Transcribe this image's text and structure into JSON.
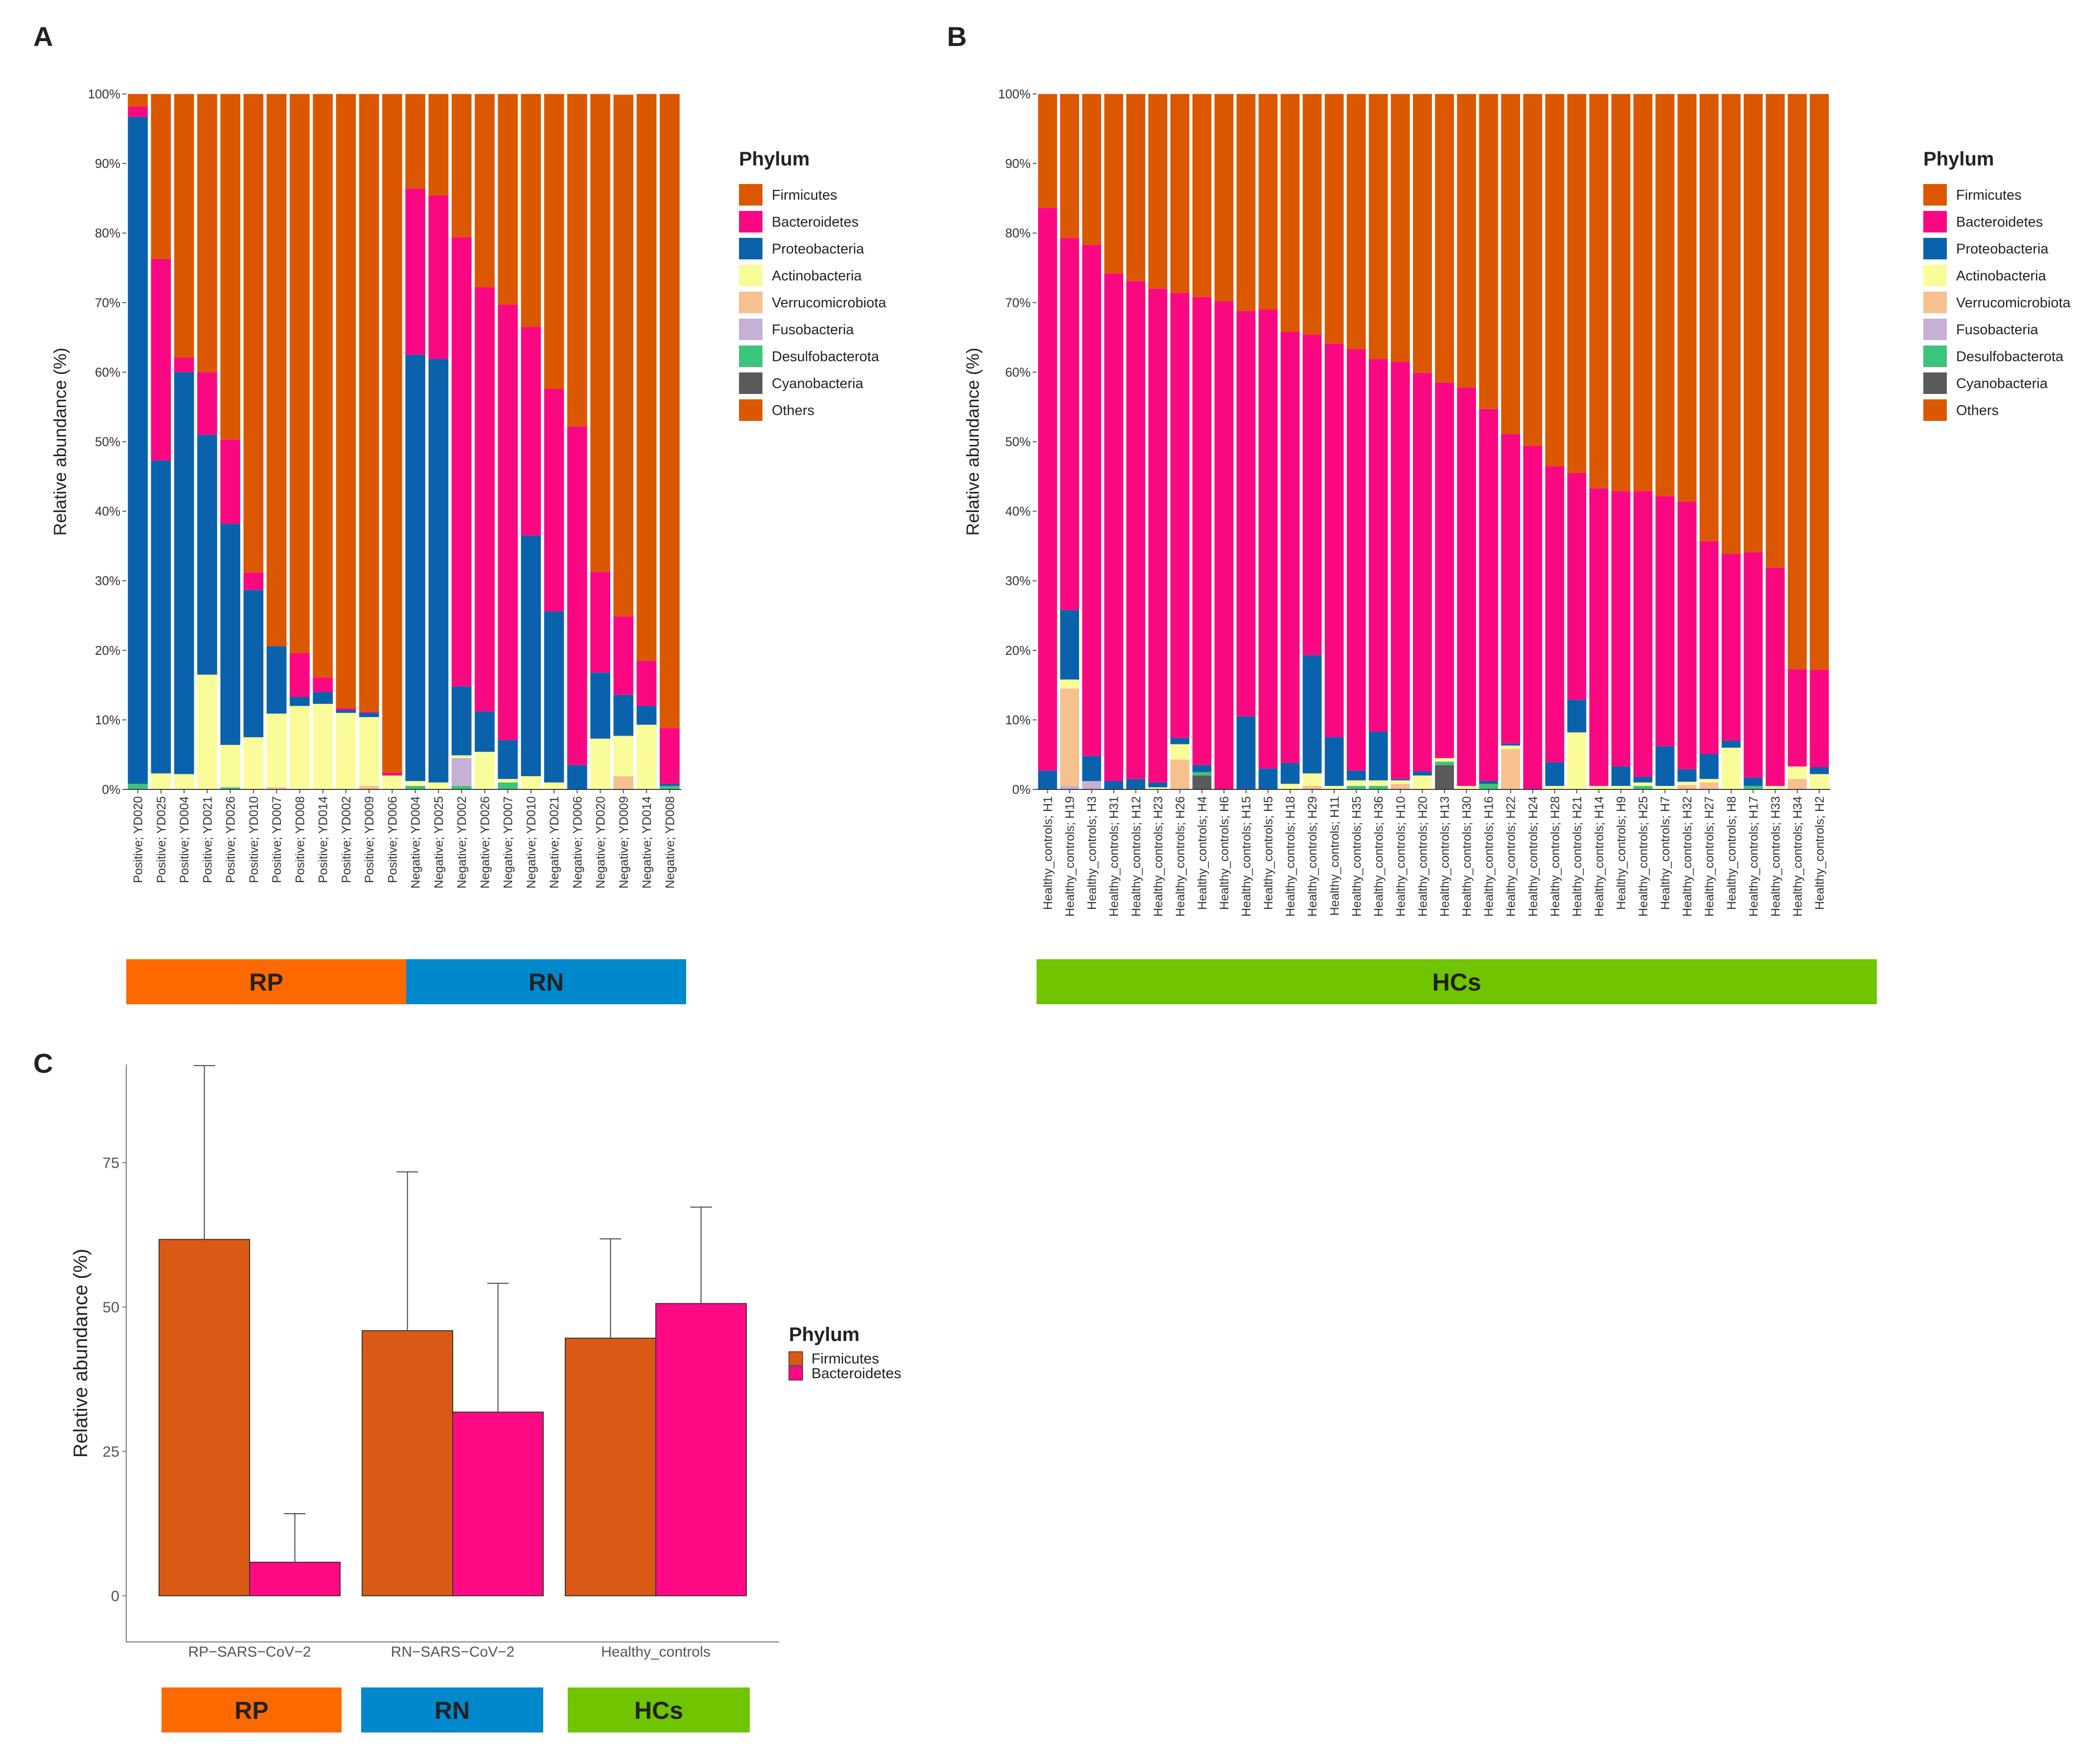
{
  "chart_data": [
    {
      "panel": "A",
      "type": "bar",
      "stacked": true,
      "ylabel": "Relative abundance (%)",
      "ylim": [
        0,
        100
      ],
      "yticks": [
        "0%",
        "10%",
        "20%",
        "30%",
        "40%",
        "50%",
        "60%",
        "70%",
        "80%",
        "90%",
        "100%"
      ],
      "legend_title": "Phylum",
      "legend_position": "right",
      "categories": [
        "Positive; YD020",
        "Positive; YD025",
        "Positive; YD004",
        "Positive; YD021",
        "Positive; YD026",
        "Positive; YD010",
        "Positive; YD007",
        "Positive; YD008",
        "Positive; YD014",
        "Positive; YD002",
        "Positive; YD009",
        "Positive; YD006",
        "Negative; YD004",
        "Negative; YD025",
        "Negative; YD002",
        "Negative; YD026",
        "Negative; YD007",
        "Negative; YD010",
        "Negative; YD021",
        "Negative; YD006",
        "Negative; YD020",
        "Negative; YD009",
        "Negative; YD014",
        "Negative; YD008"
      ],
      "series": [
        {
          "name": "Cyanobacteria",
          "color": "#5a5a5a",
          "values": [
            0,
            0,
            0,
            0,
            0,
            0,
            0,
            0,
            0,
            0,
            0,
            0,
            0,
            0,
            0,
            0,
            0,
            0,
            0,
            0,
            0,
            0,
            0,
            0
          ]
        },
        {
          "name": "Desulfobacterota",
          "color": "#3cc47c",
          "values": [
            0.8,
            0,
            0,
            0,
            0.3,
            0,
            0,
            0,
            0,
            0,
            0,
            0,
            0.5,
            0,
            0.5,
            0,
            1,
            0,
            0,
            0,
            0,
            0,
            0,
            0.5
          ]
        },
        {
          "name": "Fusobacteria",
          "color": "#c6b0d6",
          "values": [
            0,
            0,
            0,
            0,
            0,
            0,
            0,
            0,
            0,
            0,
            0,
            0,
            0,
            0,
            4,
            0,
            0,
            0,
            0,
            0,
            0,
            0,
            0,
            0
          ]
        },
        {
          "name": "Verrucomicrobiota",
          "color": "#f6c08f",
          "values": [
            0,
            0,
            0,
            0,
            0,
            0,
            0.3,
            0,
            0,
            0,
            0.5,
            0,
            0,
            0,
            0,
            0,
            0,
            0,
            0,
            0,
            0,
            1.9,
            0,
            0
          ]
        },
        {
          "name": "Actinobacteria",
          "color": "#fafc9a",
          "values": [
            0,
            2.3,
            2.2,
            16.5,
            6.1,
            7.5,
            10.6,
            12,
            12.3,
            11,
            9.9,
            2,
            0.7,
            1,
            0.4,
            5.4,
            0.5,
            1.9,
            1,
            0,
            7.3,
            5.8,
            9.3,
            0
          ]
        },
        {
          "name": "Proteobacteria",
          "color": "#0a62ad",
          "values": [
            95.9,
            45,
            57.8,
            34.5,
            31.8,
            21.2,
            9.7,
            1.3,
            1.7,
            0.4,
            0.6,
            0,
            61.3,
            60.9,
            9.9,
            5.8,
            5.6,
            34.6,
            24.6,
            3.5,
            9.5,
            5.9,
            2.7,
            0.3
          ]
        },
        {
          "name": "Bacteroidetes",
          "color": "#fa0882",
          "values": [
            1.5,
            29,
            2.1,
            9,
            12.1,
            2.5,
            0,
            6.3,
            2.1,
            0.3,
            0.2,
            0.4,
            23.9,
            23.5,
            64.6,
            61,
            62.6,
            30,
            32,
            48.7,
            14.5,
            11.3,
            6.5,
            8
          ]
        },
        {
          "name": "Firmicutes",
          "color": "#dc5800",
          "values": [
            1.8,
            23.7,
            37.9,
            40,
            49.7,
            68.8,
            79.4,
            80.4,
            83.9,
            88.3,
            88.8,
            97.6,
            13.6,
            14.6,
            20.6,
            27.8,
            30.3,
            33.5,
            42.4,
            47.8,
            68.7,
            75,
            81.5,
            91.2
          ]
        }
      ],
      "legend_entries": [
        "Firmicutes",
        "Bacteroidetes",
        "Proteobacteria",
        "Actinobacteria",
        "Verrucomicrobiota",
        "Fusobacteria",
        "Desulfobacterota",
        "Cyanobacteria",
        "Others"
      ],
      "legend_colors": [
        "#dc5800",
        "#fa0882",
        "#0a62ad",
        "#fafc9a",
        "#f6c08f",
        "#c6b0d6",
        "#3cc47c",
        "#5a5a5a",
        "#dc5800"
      ],
      "groups": [
        {
          "label": "RP",
          "color": "#ff6a00",
          "count": 12
        },
        {
          "label": "RN",
          "color": "#0088cc",
          "count": 12
        }
      ]
    },
    {
      "panel": "B",
      "type": "bar",
      "stacked": true,
      "ylabel": "Relative abundance (%)",
      "ylim": [
        0,
        100
      ],
      "yticks": [
        "0%",
        "10%",
        "20%",
        "30%",
        "40%",
        "50%",
        "60%",
        "70%",
        "80%",
        "90%",
        "100%"
      ],
      "legend_title": "Phylum",
      "legend_position": "right",
      "categories": [
        "Healthy_controls; H1",
        "Healthy_controls; H19",
        "Healthy_controls; H3",
        "Healthy_controls; H31",
        "Healthy_controls; H12",
        "Healthy_controls; H23",
        "Healthy_controls; H26",
        "Healthy_controls; H4",
        "Healthy_controls; H6",
        "Healthy_controls; H15",
        "Healthy_controls; H5",
        "Healthy_controls; H18",
        "Healthy_controls; H29",
        "Healthy_controls; H11",
        "Healthy_controls; H35",
        "Healthy_controls; H36",
        "Healthy_controls; H10",
        "Healthy_controls; H20",
        "Healthy_controls; H13",
        "Healthy_controls; H30",
        "Healthy_controls; H16",
        "Healthy_controls; H22",
        "Healthy_controls; H24",
        "Healthy_controls; H28",
        "Healthy_controls; H21",
        "Healthy_controls; H14",
        "Healthy_controls; H9",
        "Healthy_controls; H25",
        "Healthy_controls; H7",
        "Healthy_controls; H32",
        "Healthy_controls; H27",
        "Healthy_controls; H8",
        "Healthy_controls; H17",
        "Healthy_controls; H33",
        "Healthy_controls; H34",
        "Healthy_controls; H2"
      ],
      "series": [
        {
          "name": "Cyanobacteria",
          "color": "#5a5a5a",
          "values": [
            0,
            0,
            0,
            0,
            0,
            0,
            0,
            2,
            0,
            0,
            0,
            0,
            0,
            0,
            0,
            0,
            0,
            0,
            3.5,
            0,
            0,
            0,
            0,
            0,
            0,
            0,
            0,
            0,
            0,
            0,
            0,
            0,
            0,
            0,
            0,
            0
          ]
        },
        {
          "name": "Desulfobacterota",
          "color": "#3cc47c",
          "values": [
            0,
            0,
            0,
            0,
            0,
            0,
            0,
            0.5,
            0,
            0,
            0,
            0,
            0,
            0,
            0.5,
            0.5,
            0,
            0,
            0.5,
            0,
            0.8,
            0,
            0,
            0,
            0,
            0,
            0,
            0.5,
            0,
            0,
            0,
            0,
            0.5,
            0,
            0,
            0
          ]
        },
        {
          "name": "Fusobacteria",
          "color": "#c6b0d6",
          "values": [
            0,
            0.5,
            1.2,
            0,
            0,
            0,
            0,
            0,
            0,
            0,
            0,
            0,
            0,
            0,
            0,
            0,
            0,
            0,
            0,
            0,
            0,
            0,
            0,
            0,
            0,
            0,
            0,
            0,
            0,
            0,
            0,
            0,
            0,
            0,
            0,
            0
          ]
        },
        {
          "name": "Verrucomicrobiota",
          "color": "#f6c08f",
          "values": [
            0,
            14,
            0,
            0,
            0,
            0,
            4.3,
            0,
            0,
            0,
            0,
            0,
            0.5,
            0,
            0,
            0,
            0.8,
            0,
            0,
            0,
            0,
            5.8,
            0,
            0,
            0,
            0,
            0,
            0,
            0,
            0.6,
            1,
            0,
            0,
            0,
            1.5,
            0
          ]
        },
        {
          "name": "Actinobacteria",
          "color": "#fafc9a",
          "values": [
            0,
            1.3,
            0,
            0,
            0,
            0.3,
            2.2,
            0,
            0,
            0,
            0,
            0.8,
            1.8,
            0.5,
            0.8,
            0.8,
            0.5,
            2,
            0.5,
            0.5,
            0,
            0.5,
            0,
            0.5,
            8.2,
            0.5,
            0.5,
            0.5,
            0.5,
            0.5,
            0.5,
            6,
            0,
            0.5,
            1.8,
            2.2
          ]
        },
        {
          "name": "Proteobacteria",
          "color": "#0a62ad",
          "values": [
            2.7,
            10,
            3.6,
            1.2,
            1.5,
            0.7,
            0.9,
            1,
            0,
            10.5,
            3,
            3,
            17,
            7,
            1.4,
            7,
            0.2,
            0.6,
            0,
            0,
            0.4,
            0.3,
            0,
            3.4,
            4.7,
            0,
            2.8,
            0.8,
            5.7,
            1.8,
            3.6,
            1,
            1.2,
            0,
            0,
            1
          ]
        },
        {
          "name": "Bacteroidetes",
          "color": "#fa0882",
          "values": [
            80.9,
            53.5,
            73.5,
            73,
            71.6,
            71,
            64,
            67.3,
            70.2,
            58.3,
            66,
            62,
            46.1,
            56.6,
            60.6,
            53.6,
            60,
            57.3,
            54,
            57.3,
            53.5,
            44.5,
            49.4,
            42.6,
            32.6,
            42.8,
            39.6,
            41.1,
            36,
            38.5,
            30.6,
            26.9,
            32.4,
            31.4,
            14,
            14
          ]
        },
        {
          "name": "Firmicutes",
          "color": "#dc5800",
          "values": [
            16.4,
            20.7,
            21.7,
            25.8,
            26.9,
            28,
            28.6,
            29.2,
            29.8,
            31.2,
            31,
            34.2,
            34.6,
            35.9,
            36.7,
            38.1,
            38.5,
            40.1,
            41.5,
            42.2,
            45.3,
            48.9,
            50.6,
            53.5,
            54.5,
            56.7,
            57.1,
            57.1,
            57.8,
            58.6,
            64.3,
            66.1,
            65.9,
            68.1,
            82.7,
            82.8
          ]
        }
      ],
      "legend_entries": [
        "Firmicutes",
        "Bacteroidetes",
        "Proteobacteria",
        "Actinobacteria",
        "Verrucomicrobiota",
        "Fusobacteria",
        "Desulfobacterota",
        "Cyanobacteria",
        "Others"
      ],
      "legend_colors": [
        "#dc5800",
        "#fa0882",
        "#0a62ad",
        "#fafc9a",
        "#f6c08f",
        "#c6b0d6",
        "#3cc47c",
        "#5a5a5a",
        "#dc5800"
      ],
      "groups": [
        {
          "label": "HCs",
          "color": "#70c400",
          "count": 36
        }
      ]
    },
    {
      "panel": "C",
      "type": "bar",
      "grouped": true,
      "ylabel": "Relative abundance (%)",
      "ylim": [
        -8,
        92
      ],
      "yticks": [
        0,
        25,
        50,
        75
      ],
      "legend_title": "Phylum",
      "legend_position": "right",
      "categories": [
        "RP−SARS−CoV−2",
        "RN−SARS−CoV−2",
        "Healthy_controls"
      ],
      "series": [
        {
          "name": "Firmicutes",
          "color": "#d95915",
          "values": [
            61.7,
            45.9,
            44.6
          ],
          "error": [
            30.1,
            27.5,
            17.2
          ]
        },
        {
          "name": "Bacteroidetes",
          "color": "#ff0a84",
          "values": [
            5.8,
            31.8,
            50.6
          ],
          "error": [
            8.4,
            22.3,
            16.7
          ]
        }
      ],
      "groups": [
        {
          "label": "RP",
          "color": "#ff6a00"
        },
        {
          "label": "RN",
          "color": "#0088cc"
        },
        {
          "label": "HCs",
          "color": "#70c400"
        }
      ]
    }
  ]
}
